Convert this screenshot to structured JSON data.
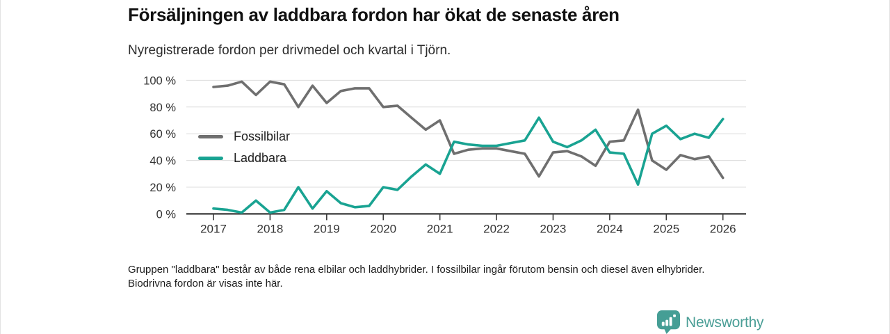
{
  "header": {
    "title": "Försäljningen av laddbara fordon har ökat de senaste åren",
    "subtitle": "Nyregistrerade fordon per drivmedel och kvartal i Tjörn."
  },
  "chart_data": {
    "type": "line",
    "title": "Försäljningen av laddbara fordon har ökat de senaste åren",
    "subtitle": "Nyregistrerade fordon per drivmedel och kvartal i Tjörn.",
    "x": [
      "2017 Q1",
      "2017 Q2",
      "2017 Q3",
      "2017 Q4",
      "2018 Q1",
      "2018 Q2",
      "2018 Q3",
      "2018 Q4",
      "2019 Q1",
      "2019 Q2",
      "2019 Q3",
      "2019 Q4",
      "2020 Q1",
      "2020 Q2",
      "2020 Q3",
      "2020 Q4",
      "2021 Q1",
      "2021 Q2",
      "2021 Q3",
      "2021 Q4",
      "2022 Q1",
      "2022 Q2",
      "2022 Q3",
      "2022 Q4",
      "2023 Q1",
      "2023 Q2",
      "2023 Q3",
      "2023 Q4",
      "2024 Q1",
      "2024 Q2",
      "2024 Q3",
      "2024 Q4",
      "2025 Q1",
      "2025 Q2",
      "2025 Q3",
      "2025 Q4",
      "2026 Q1"
    ],
    "x_tick_labels": [
      "2017",
      "2018",
      "2019",
      "2020",
      "2021",
      "2022",
      "2023",
      "2024",
      "2025",
      "2026"
    ],
    "y_tick_labels": [
      "0 %",
      "20 %",
      "40 %",
      "60 %",
      "80 %",
      "100 %"
    ],
    "y_unit": "%",
    "ylim": [
      0,
      100
    ],
    "grid": true,
    "legend_position": "inside-left",
    "series": [
      {
        "name": "Fossilbilar",
        "color": "#6f6f6f",
        "values": [
          95,
          96,
          99,
          89,
          99,
          97,
          80,
          96,
          83,
          92,
          94,
          94,
          80,
          81,
          72,
          63,
          70,
          45,
          48,
          49,
          49,
          47,
          45,
          28,
          46,
          47,
          43,
          36,
          54,
          55,
          78,
          40,
          33,
          44,
          41,
          43,
          27
        ]
      },
      {
        "name": "Laddbara",
        "color": "#19a392",
        "values": [
          4,
          3,
          1,
          10,
          1,
          3,
          20,
          4,
          17,
          8,
          5,
          6,
          20,
          18,
          28,
          37,
          30,
          54,
          52,
          51,
          51,
          53,
          55,
          72,
          54,
          50,
          55,
          63,
          46,
          45,
          22,
          60,
          66,
          56,
          60,
          57,
          71
        ]
      }
    ]
  },
  "footnote": {
    "text": "Gruppen \"laddbara\" består av både rena elbilar och laddhybrider. I fossilbilar ingår förutom bensin och diesel även elhybrider. Biodrivna fordon är visas inte här."
  },
  "footer": {
    "brand": "Newsworthy",
    "logo_icon": "bar-chart-marker-icon",
    "brand_color": "#4a9e96"
  },
  "colors": {
    "fossil_line": "#6f6f6f",
    "laddbara_line": "#19a392",
    "grid": "#dcdcdc",
    "axis": "#3a3a3a",
    "tick_text": "#333333"
  }
}
